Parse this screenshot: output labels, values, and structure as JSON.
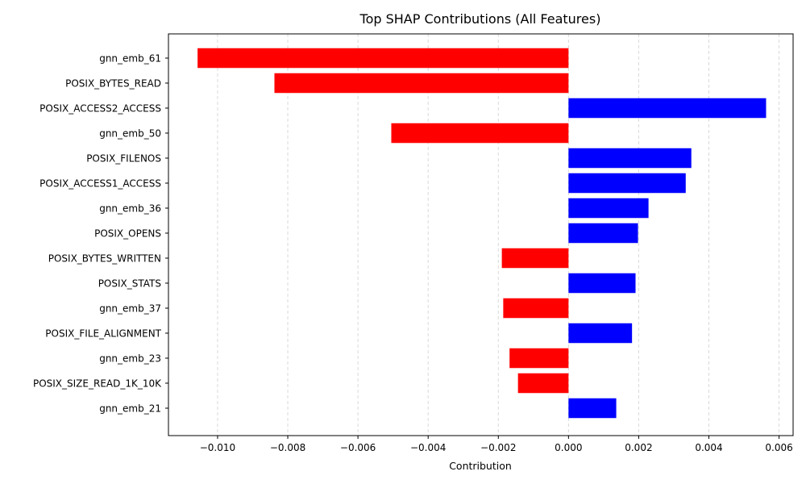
{
  "chart_data": {
    "type": "bar",
    "orientation": "horizontal",
    "title": "Top SHAP Contributions (All Features)",
    "xlabel": "Contribution",
    "ylabel": "",
    "xlim": [
      -0.0114,
      0.0064
    ],
    "xticks": [
      -0.01,
      -0.008,
      -0.006,
      -0.004,
      -0.002,
      0.0,
      0.002,
      0.004,
      0.006
    ],
    "xtick_labels": [
      "−0.010",
      "−0.008",
      "−0.006",
      "−0.004",
      "−0.002",
      "0.000",
      "0.002",
      "0.004",
      "0.006"
    ],
    "grid": "x-dashed",
    "colors": {
      "positive": "#0000ff",
      "negative": "#ff0000",
      "grid": "#d9d9d9"
    },
    "categories": [
      "gnn_emb_61",
      "POSIX_BYTES_READ",
      "POSIX_ACCESS2_ACCESS",
      "gnn_emb_50",
      "POSIX_FILENOS",
      "POSIX_ACCESS1_ACCESS",
      "gnn_emb_36",
      "POSIX_OPENS",
      "POSIX_BYTES_WRITTEN",
      "POSIX_STATS",
      "gnn_emb_37",
      "POSIX_FILE_ALIGNMENT",
      "gnn_emb_23",
      "POSIX_SIZE_READ_1K_10K",
      "gnn_emb_21"
    ],
    "values": [
      -0.01057,
      -0.00838,
      0.00563,
      -0.00505,
      0.0035,
      0.00334,
      0.00228,
      0.00198,
      -0.0019,
      0.00191,
      -0.00186,
      0.00181,
      -0.00168,
      -0.00144,
      0.00136
    ]
  }
}
